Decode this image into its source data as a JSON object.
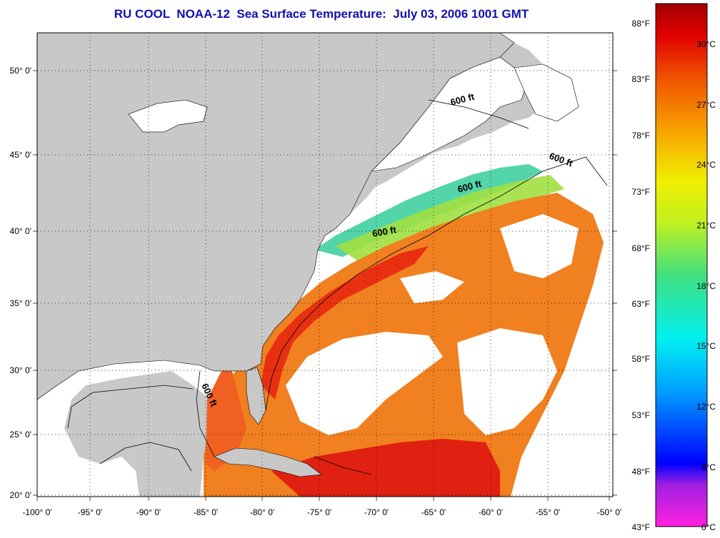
{
  "title": "RU COOL  NOAA-12  Sea Surface Temperature:  July 03, 2006 1001 GMT",
  "lat_labels": [
    "50° 0'",
    "45° 0'",
    "40° 0'",
    "35° 0'",
    "30° 0'",
    "25° 0'",
    "20° 0'"
  ],
  "lon_labels": [
    "-100° 0'",
    "-95° 0'",
    "-90° 0'",
    "-85° 0'",
    "-80° 0'",
    "-75° 0'",
    "-70° 0'",
    "-65° 0'",
    "-60° 0'",
    "-55° 0'",
    "-50° 0'"
  ],
  "depth_labels": [
    "600 ft",
    "600 ft",
    "600 ft",
    "600 ft",
    "600 ft"
  ],
  "colorbar": {
    "fahrenheit": [
      "88°F",
      "83°F",
      "78°F",
      "73°F",
      "68°F",
      "63°F",
      "58°F",
      "53°F",
      "48°F",
      "43°F"
    ],
    "celsius": [
      "30°C",
      "27°C",
      "24°C",
      "21°C",
      "18°C",
      "15°C",
      "12°C",
      "9°C",
      "6°C"
    ]
  },
  "colors": {
    "land": "#c8c8c8",
    "cloud": "#ffffff",
    "title": "#1010b0",
    "sst_warm": "#f06018",
    "sst_hot": "#e02010",
    "sst_cool": "#f0a020"
  }
}
